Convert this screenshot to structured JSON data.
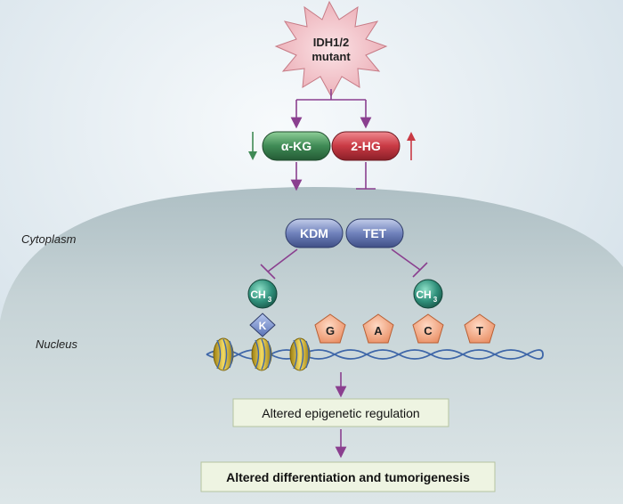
{
  "mutant": {
    "line1": "IDH1/2",
    "line2": "mutant"
  },
  "metabolites": {
    "akg": {
      "label": "α-KG",
      "trend": "down",
      "color": "#3f8a55"
    },
    "hg2": {
      "label": "2-HG",
      "trend": "up",
      "color": "#c93a44"
    }
  },
  "enzymes": {
    "kdm": "KDM",
    "tet": "TET"
  },
  "compartments": {
    "cytoplasm": "Cytoplasm",
    "nucleus": "Nucleus"
  },
  "methyl": {
    "ch": "CH",
    "sub": "3"
  },
  "lysine": "K",
  "bases": [
    "G",
    "A",
    "C",
    "T"
  ],
  "outcomes": {
    "epigenetic": "Altered epigenetic regulation",
    "tumor": "Altered differentiation and tumorigenesis"
  },
  "colors": {
    "arrow": "#8a3f8f",
    "nucleus": "#b9c9cd",
    "cytoplasm": "#e9f0f5",
    "histone": "#d8b82c",
    "dna": "#3e66a8",
    "base": "#f2a57e",
    "methyl": "#2f8f7a",
    "enzyme": "#6f80b8"
  }
}
